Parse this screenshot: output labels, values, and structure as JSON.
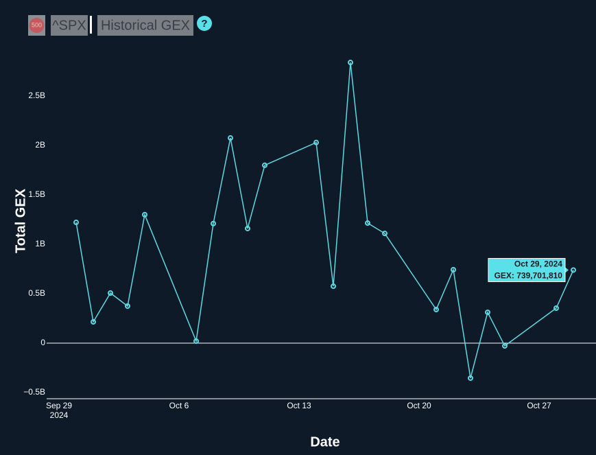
{
  "header": {
    "badge": "500",
    "symbol": "^SPX",
    "page": "Historical GEX",
    "help": "?"
  },
  "chart_data": {
    "type": "line",
    "xlabel": "Date",
    "ylabel": "Total GEX",
    "x": [
      "2024-09-30",
      "2024-10-01",
      "2024-10-02",
      "2024-10-03",
      "2024-10-04",
      "2024-10-07",
      "2024-10-08",
      "2024-10-09",
      "2024-10-10",
      "2024-10-11",
      "2024-10-14",
      "2024-10-15",
      "2024-10-16",
      "2024-10-17",
      "2024-10-18",
      "2024-10-21",
      "2024-10-22",
      "2024-10-23",
      "2024-10-24",
      "2024-10-25",
      "2024-10-28",
      "2024-10-29"
    ],
    "series": [
      {
        "name": "GEX",
        "color": "#5fd8e0",
        "values": [
          1222000000,
          215000000,
          507000000,
          375000000,
          1300000000,
          20000000,
          1210000000,
          2076000000,
          1160000000,
          1800000000,
          2030000000,
          576000000,
          2840000000,
          1215000000,
          1110000000,
          340000000,
          743000000,
          -354000000,
          312000000,
          -28000000,
          354000000,
          739701810
        ]
      }
    ],
    "xlim": [
      "2024-09-28T06:43Z",
      "2024-10-30T07:41Z"
    ],
    "xticks": [
      {
        "value": "2024-09-29",
        "label": "Sep 29\n2024"
      },
      {
        "value": "2024-10-06",
        "label": "Oct 6"
      },
      {
        "value": "2024-10-13",
        "label": "Oct 13"
      },
      {
        "value": "2024-10-20",
        "label": "Oct 20"
      },
      {
        "value": "2024-10-27",
        "label": "Oct 27"
      }
    ],
    "ylim": [
      -562500000,
      2986000000
    ],
    "yticks": [
      {
        "value": -500000000,
        "label": "−0.5B"
      },
      0,
      {
        "value": 500000000,
        "label": "0.5B"
      },
      {
        "value": 1000000000,
        "label": "1B"
      },
      {
        "value": 1500000000,
        "label": "1.5B"
      },
      {
        "value": 2000000000,
        "label": "2B"
      },
      {
        "value": 2500000000,
        "label": "2.5B"
      }
    ],
    "tooltip": {
      "title": "Oct 29, 2024",
      "label": "GEX: 739,701,810",
      "color": "#5ae0e8"
    }
  }
}
